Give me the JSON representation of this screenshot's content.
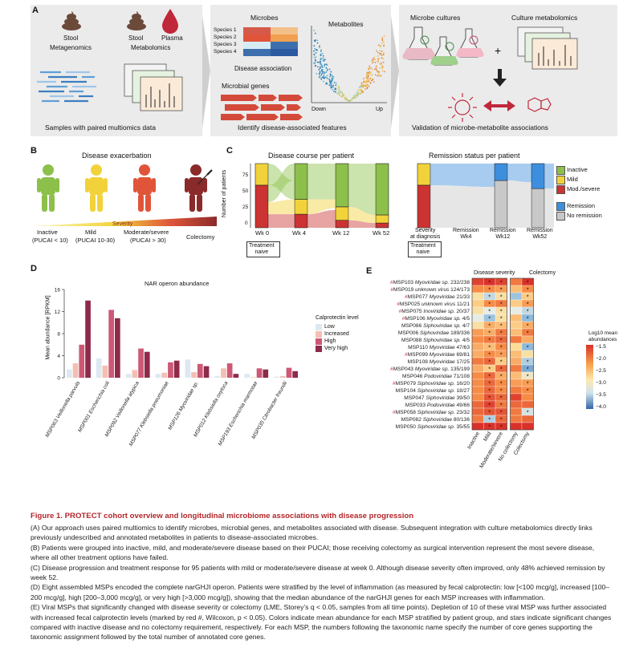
{
  "panels": {
    "A": "A",
    "B": "B",
    "C": "C",
    "D": "D",
    "E": "E"
  },
  "panelA": {
    "stool1": "Stool",
    "metagenomics": "Metagenomics",
    "stool2": "Stool",
    "plasma": "Plasma",
    "metabolomics": "Metabolomics",
    "caption1": "Samples with paired multiomics data",
    "microbes": "Microbes",
    "metabolites": "Metabolites",
    "species": [
      "Species 1",
      "Species 2",
      "Species 3",
      "Species 4"
    ],
    "disease_association": "Disease association",
    "microbial_genes": "Microbial genes",
    "down": "Down",
    "up": "Up",
    "caption2": "Identify disease-associated features",
    "microbe_cultures": "Microbe cultures",
    "culture_metabolomics": "Culture metabolomics",
    "plus": "+",
    "caption3": "Validation of microbe-metabolite associations"
  },
  "panelB": {
    "title": "Disease exacerbation",
    "severity": "Severity",
    "groups": [
      {
        "name": "Inactive",
        "sub": "(PUCAI < 10)",
        "color": "#8cc04a"
      },
      {
        "name": "Mild",
        "sub": "(PUCAI 10-30)",
        "color": "#f2d23a"
      },
      {
        "name": "Moderate/severe",
        "sub": "(PUCAI > 30)",
        "color": "#e0553a"
      },
      {
        "name": "Colectomy",
        "sub": "",
        "color": "#8b2a2a"
      }
    ]
  },
  "panelC": {
    "title1": "Disease course per patient",
    "title2": "Remission status per patient",
    "ylabel": "Number of patients",
    "yticks": [
      "0",
      "25",
      "50",
      "75"
    ],
    "x1": [
      "Wk 0",
      "Wk 4",
      "Wk 12",
      "Wk 52"
    ],
    "x2": [
      "Severity\nat diagnosis",
      "Remission\nWk4",
      "Remission\nWk12",
      "Remission\nWk52"
    ],
    "treatment_naive": "Treatment\nnaive",
    "legend": [
      {
        "label": "Inactive",
        "color": "#8cc04a"
      },
      {
        "label": "Mild",
        "color": "#f2d23a"
      },
      {
        "label": "Mod./severe",
        "color": "#cc3333"
      },
      {
        "label": "Remission",
        "color": "#3e8ede"
      },
      {
        "label": "No remission",
        "color": "#c8c8c8"
      }
    ]
  },
  "panelD": {
    "title": "NAR operon abundance",
    "ylabel": "Mean abundance [RPKM]",
    "legend_title": "Calprotectin level",
    "levels": [
      {
        "label": "Low",
        "color": "#dde8f2"
      },
      {
        "label": "Increased",
        "color": "#f3bfb0"
      },
      {
        "label": "High",
        "color": "#cc5876"
      },
      {
        "label": "Very high",
        "color": "#8e2a4a"
      }
    ]
  },
  "chart_data": {
    "type": "bar",
    "title": "NAR operon abundance",
    "ylabel": "Mean abundance [RPKM]",
    "ylim": [
      0,
      16
    ],
    "yticks": [
      0,
      4,
      8,
      12,
      16
    ],
    "categories": [
      "MSP063 Veillonella parvula",
      "MSP001 Escherichia coli",
      "MSP092 Veillonella atypica",
      "MSP077 Klebsiella pneumoniae",
      "MSP126 Myoviridae sp.",
      "MSP012 Klebsiella oxytoca",
      "MSP193 Escherichia marmotae",
      "MSP035 Citrobacter freundii"
    ],
    "series": [
      {
        "name": "Low",
        "values": [
          1.5,
          3.5,
          0.7,
          0.7,
          3.3,
          0.3,
          0.7,
          0.2
        ]
      },
      {
        "name": "Increased",
        "values": [
          2.6,
          2.2,
          1.4,
          0.9,
          1.0,
          1.7,
          0.1,
          0.3
        ]
      },
      {
        "name": "High",
        "values": [
          6.0,
          12.3,
          5.3,
          2.8,
          2.5,
          2.6,
          1.7,
          1.8
        ]
      },
      {
        "name": "Very high",
        "values": [
          14.0,
          10.8,
          4.7,
          3.1,
          2.1,
          0.7,
          1.5,
          1.2
        ]
      }
    ]
  },
  "panelE": {
    "header1": "Disease severity",
    "header2": "Colectomy",
    "colnames": [
      "Inactive",
      "Mild",
      "Moderate/severe",
      "No colectomy",
      "Colectomy"
    ],
    "legend_title": "Log10 mean\nabundances",
    "legend_ticks": [
      "−1.5",
      "−2.0",
      "−2.5",
      "−3.0",
      "−3.5",
      "−4.0"
    ],
    "rows": [
      {
        "hash": true,
        "id": "MSP103",
        "tax": "Myoviridae sp.",
        "n": "232/238"
      },
      {
        "hash": true,
        "id": "MSP019",
        "tax": "unknown virus",
        "n": "124/173"
      },
      {
        "hash": true,
        "id": "MSP077",
        "tax": "Myoviridae",
        "n": "21/33"
      },
      {
        "hash": true,
        "id": "MSP025",
        "tax": "unknown virus",
        "n": "11/21"
      },
      {
        "hash": true,
        "id": "MSP075",
        "tax": "Inoviridae sp.",
        "n": "20/37"
      },
      {
        "hash": true,
        "id": "MSP106",
        "tax": "Myoviridae sp.",
        "n": "4/5"
      },
      {
        "hash": false,
        "id": "MSP086",
        "tax": "Siphoviridae sp.",
        "n": "4/7"
      },
      {
        "hash": false,
        "id": "MSP006",
        "tax": "Siphoviridae",
        "n": "189/336"
      },
      {
        "hash": false,
        "id": "MSP088",
        "tax": "Siphoviridae sp.",
        "n": "4/5"
      },
      {
        "hash": false,
        "id": "MSP110",
        "tax": "Myoviridae",
        "n": "47/63"
      },
      {
        "hash": true,
        "id": "MSP099",
        "tax": "Myoviridae",
        "n": "69/81"
      },
      {
        "hash": false,
        "id": "MSP108",
        "tax": "Myoviridae",
        "n": "17/25"
      },
      {
        "hash": true,
        "id": "MSP043",
        "tax": "Myoviridae sp.",
        "n": "135/199"
      },
      {
        "hash": false,
        "id": "MSP046",
        "tax": "Podoviridae",
        "n": "71/108"
      },
      {
        "hash": true,
        "id": "MSP079",
        "tax": "Siphoviridae sp.",
        "n": "16/20"
      },
      {
        "hash": false,
        "id": "MSP104",
        "tax": "Siphoviridae sp.",
        "n": "18/27"
      },
      {
        "hash": false,
        "id": "MSP047",
        "tax": "Siphoviridae",
        "n": "39/50"
      },
      {
        "hash": false,
        "id": "MSP033",
        "tax": "Podoviridae",
        "n": "49/66"
      },
      {
        "hash": true,
        "id": "MSP058",
        "tax": "Siphoviridae sp.",
        "n": "23/32"
      },
      {
        "hash": false,
        "id": "MSP082",
        "tax": "Siphoviridae",
        "n": "80/136"
      },
      {
        "hash": false,
        "id": "MSP050",
        "tax": "Siphoviridae sp.",
        "n": "35/55"
      }
    ],
    "values": [
      [
        -1.6,
        -1.5,
        -1.6,
        -1.9,
        -1.5
      ],
      [
        -2.0,
        -2.0,
        -2.1,
        -2.3,
        -2.0
      ],
      [
        -2.6,
        -3.2,
        -2.6,
        -3.4,
        -2.4
      ],
      [
        -2.4,
        -2.0,
        -1.9,
        -2.4,
        -2.1
      ],
      [
        -2.6,
        -3.0,
        -2.6,
        -3.0,
        -3.2
      ],
      [
        -3.0,
        -3.4,
        -2.6,
        -2.3,
        -3.5
      ],
      [
        -2.6,
        -2.2,
        -2.3,
        -2.4,
        -2.2
      ],
      [
        -2.1,
        -2.2,
        -1.9,
        -2.3,
        -1.9
      ],
      [
        -2.0,
        -1.9,
        -1.8,
        -1.9,
        -2.2
      ],
      [
        -2.2,
        -2.3,
        -2.0,
        -2.5,
        -3.5
      ],
      [
        -2.2,
        -2.0,
        -2.1,
        -2.3,
        -2.6
      ],
      [
        -1.9,
        -1.8,
        -2.4,
        -2.2,
        -3.3
      ],
      [
        -2.2,
        -2.4,
        -1.8,
        -1.9,
        -3.6
      ],
      [
        -2.0,
        -1.8,
        -2.2,
        -2.3,
        -2.8
      ],
      [
        -2.0,
        -1.8,
        -2.0,
        -2.1,
        -2.1
      ],
      [
        -2.0,
        -1.8,
        -2.0,
        -1.9,
        -2.0
      ],
      [
        -2.0,
        -1.7,
        -1.8,
        -1.6,
        -2.0
      ],
      [
        -1.8,
        -1.6,
        -1.9,
        -1.8,
        -1.8
      ],
      [
        -1.8,
        -1.7,
        -1.7,
        -1.9,
        -3.1
      ],
      [
        -1.9,
        -3.3,
        -1.8,
        -1.9,
        -1.8
      ],
      [
        -1.5,
        -1.5,
        -1.4,
        -1.4,
        -1.4
      ]
    ],
    "stars": [
      [
        0,
        1,
        1,
        0,
        1
      ],
      [
        0,
        1,
        1,
        0,
        1
      ],
      [
        0,
        1,
        1,
        0,
        1
      ],
      [
        0,
        1,
        1,
        0,
        1
      ],
      [
        0,
        1,
        1,
        0,
        1
      ],
      [
        0,
        1,
        1,
        0,
        1
      ],
      [
        0,
        1,
        1,
        0,
        1
      ],
      [
        0,
        1,
        1,
        0,
        1
      ],
      [
        0,
        1,
        1,
        0,
        0
      ],
      [
        0,
        1,
        1,
        0,
        1
      ],
      [
        0,
        1,
        1,
        0,
        0
      ],
      [
        0,
        1,
        1,
        0,
        1
      ],
      [
        0,
        1,
        1,
        0,
        1
      ],
      [
        0,
        1,
        1,
        0,
        1
      ],
      [
        0,
        1,
        1,
        0,
        1
      ],
      [
        0,
        1,
        1,
        0,
        1
      ],
      [
        0,
        1,
        1,
        0,
        0
      ],
      [
        0,
        1,
        1,
        0,
        0
      ],
      [
        0,
        1,
        1,
        0,
        1
      ],
      [
        0,
        1,
        1,
        0,
        0
      ],
      [
        0,
        1,
        1,
        0,
        0
      ]
    ]
  },
  "caption": {
    "title": "Figure 1.  PROTECT cohort overview and longitudinal microbiome associations with disease progression",
    "paragraphs": [
      "(A) Our approach uses paired multiomics to identify microbes, microbial genes, and metabolites associated with disease. Subsequent integration with culture metabolomics directly links previously undescribed and annotated metabolites in patients to disease-associated microbes.",
      "(B) Patients were grouped into inactive, mild, and moderate/severe disease based on their PUCAI; those receiving colectomy as surgical intervention represent the most severe disease, where all other treatment options have failed.",
      "(C) Disease progression and treatment response for 95 patients with mild or moderate/severe disease at week 0. Although disease severity often improved, only 48% achieved remission by week 52.",
      "(D) Eight assembled MSPs encoded the complete narGHJI operon. Patients were stratified by the level of inflammation (as measured by fecal calprotectin: low [<100 mcg/g], increased [100–200 mcg/g], high [200–3,000 mcg/g], or very high [>3,000 mcg/g]), showing that the median abundance of the narGHJI genes for each MSP increases with inflammation.",
      "(E) Viral MSPs that significantly changed with disease severity or colectomy (LME, Storey’s q < 0.05, samples from all time points). Depletion of 10 of these viral MSP was further associated with increased fecal calprotectin levels (marked by red #, Wilcoxon, p < 0.05). Colors indicate mean abundance for each MSP stratified by patient group, and stars indicate significant changes compared with inactive disease and no colectomy requirement, respectively. For each MSP, the numbers following the taxonomic name specify the number of core genes supporting the taxonomic assignment followed by the total number of annotated core genes."
    ]
  }
}
